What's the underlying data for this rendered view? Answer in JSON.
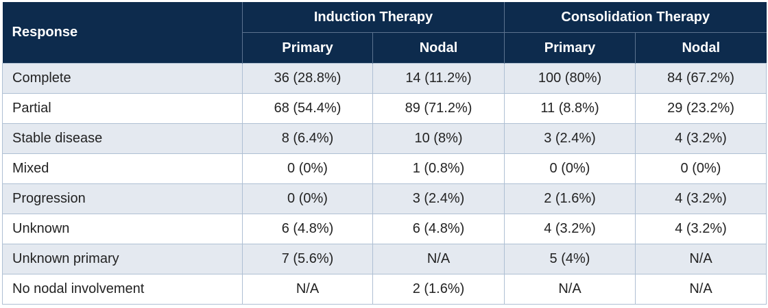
{
  "header": {
    "response_label": "Response",
    "groups": [
      {
        "label": "Induction Therapy"
      },
      {
        "label": "Consolidation Therapy"
      }
    ],
    "subheaders": [
      "Primary",
      "Nodal",
      "Primary",
      "Nodal"
    ]
  },
  "rows": [
    {
      "label": "Complete",
      "cells": [
        "36 (28.8%)",
        "14 (11.2%)",
        "100 (80%)",
        "84 (67.2%)"
      ]
    },
    {
      "label": "Partial",
      "cells": [
        "68 (54.4%)",
        "89 (71.2%)",
        "11 (8.8%)",
        "29 (23.2%)"
      ]
    },
    {
      "label": "Stable disease",
      "cells": [
        "8 (6.4%)",
        "10 (8%)",
        "3 (2.4%)",
        "4 (3.2%)"
      ]
    },
    {
      "label": "Mixed",
      "cells": [
        "0 (0%)",
        "1 (0.8%)",
        "0 (0%)",
        "0 (0%)"
      ]
    },
    {
      "label": "Progression",
      "cells": [
        "0 (0%)",
        "3 (2.4%)",
        "2 (1.6%)",
        "4 (3.2%)"
      ]
    },
    {
      "label": "Unknown",
      "cells": [
        "6 (4.8%)",
        "6 (4.8%)",
        "4 (3.2%)",
        "4 (3.2%)"
      ]
    },
    {
      "label": "Unknown primary",
      "cells": [
        "7 (5.6%)",
        "N/A",
        "5 (4%)",
        "N/A"
      ]
    },
    {
      "label": "No nodal involvement",
      "cells": [
        "N/A",
        "2 (1.6%)",
        "N/A",
        "N/A"
      ]
    }
  ],
  "colors": {
    "header_bg": "#0d2b4d",
    "header_text": "#ffffff",
    "row_alt_bg": "#e4e9f0",
    "row_bg": "#ffffff",
    "border": "#aebfd3"
  }
}
